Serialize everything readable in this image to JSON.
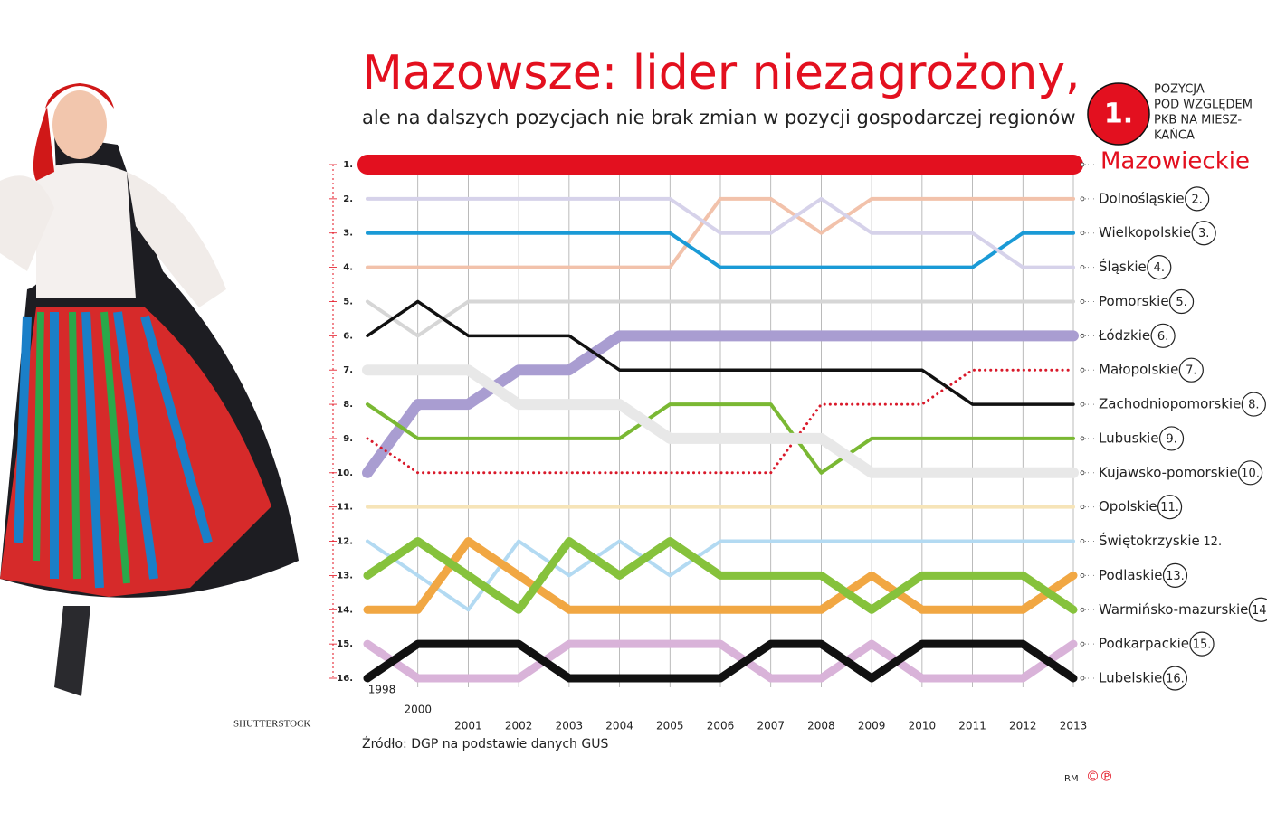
{
  "chart_data": {
    "type": "bump",
    "title": "Mazowsze: lider niezagrożony,",
    "subtitle": "ale na dalszych pozycjach nie brak zmian w pozycji gospodarczej regionów",
    "key_number": "1.",
    "key_text": [
      "POZYCJA",
      "POD WZGLĘDEM",
      "PKB NA MIESZ-",
      "KAŃCA"
    ],
    "photo_credit": "SHUTTERSTOCK",
    "source": "Źródło: DGP na podstawie danych GUS",
    "author": "RM",
    "copyright": "©℗",
    "categories": [
      "1998",
      "2000",
      "2001",
      "2002",
      "2003",
      "2004",
      "2005",
      "2006",
      "2007",
      "2008",
      "2009",
      "2010",
      "2011",
      "2012",
      "2013"
    ],
    "ylim": [
      1,
      16
    ],
    "yticks": [
      {
        "value": 1,
        "label": "1."
      },
      {
        "value": 2,
        "label": "2."
      },
      {
        "value": 3,
        "label": "3."
      },
      {
        "value": 4,
        "label": "4."
      },
      {
        "value": 5,
        "label": "5."
      },
      {
        "value": 6,
        "label": "6."
      },
      {
        "value": 7,
        "label": "7."
      },
      {
        "value": 8,
        "label": "8."
      },
      {
        "value": 9,
        "label": "9."
      },
      {
        "value": 10,
        "label": "10."
      },
      {
        "value": 11,
        "label": "11."
      },
      {
        "value": 12,
        "label": "12."
      },
      {
        "value": 13,
        "label": "13."
      },
      {
        "value": 14,
        "label": "14."
      },
      {
        "value": 15,
        "label": "15."
      },
      {
        "value": 16,
        "label": "16."
      }
    ],
    "grid": true,
    "series": [
      {
        "name": "Mazowieckie",
        "color": "#e3101f",
        "width": 22,
        "values": [
          1,
          1,
          1,
          1,
          1,
          1,
          1,
          1,
          1,
          1,
          1,
          1,
          1,
          1,
          1
        ]
      },
      {
        "name": "Dolnośląskie",
        "rank_label": "2.",
        "color": "#f2c2ab",
        "width": 4,
        "values": [
          4,
          4,
          4,
          4,
          4,
          4,
          4,
          2,
          2,
          3,
          2,
          2,
          2,
          2,
          2
        ]
      },
      {
        "name": "Wielkopolskie",
        "rank_label": "3.",
        "color": "#1a9ad6",
        "width": 4,
        "values": [
          3,
          3,
          3,
          3,
          3,
          3,
          3,
          4,
          4,
          4,
          4,
          4,
          4,
          3,
          3
        ]
      },
      {
        "name": "Śląskie",
        "rank_label": "4.",
        "color": "#d6d2ea",
        "width": 4,
        "values": [
          2,
          2,
          2,
          2,
          2,
          2,
          2,
          3,
          3,
          2,
          3,
          3,
          3,
          4,
          4
        ]
      },
      {
        "name": "Pomorskie",
        "rank_label": "5.",
        "color": "#d6d6d6",
        "width": 4,
        "values": [
          5,
          6,
          5,
          5,
          5,
          5,
          5,
          5,
          5,
          5,
          5,
          5,
          5,
          5,
          5
        ]
      },
      {
        "name": "Łódzkie",
        "rank_label": "6.",
        "color": "#a99dd1",
        "width": 12,
        "values": [
          10,
          8,
          8,
          7,
          7,
          6,
          6,
          6,
          6,
          6,
          6,
          6,
          6,
          6,
          6
        ]
      },
      {
        "name": "Małopolskie",
        "rank_label": "7.",
        "color": "#d9192a",
        "width": 3,
        "dash": true,
        "values": [
          9,
          10,
          10,
          10,
          10,
          10,
          10,
          10,
          10,
          8,
          8,
          8,
          7,
          7,
          7
        ]
      },
      {
        "name": "Zachodniopomorskie",
        "rank_label": "8.",
        "color": "#111111",
        "width": 3.5,
        "values": [
          6,
          5,
          6,
          6,
          6,
          7,
          7,
          7,
          7,
          7,
          7,
          7,
          8,
          8,
          8
        ]
      },
      {
        "name": "Lubuskie",
        "rank_label": "9.",
        "color": "#7ab833",
        "width": 4,
        "values": [
          8,
          9,
          9,
          9,
          9,
          9,
          8,
          8,
          8,
          10,
          9,
          9,
          9,
          9,
          9
        ]
      },
      {
        "name": "Kujawsko-pomorskie",
        "rank_label": "10.",
        "color": "#e8e8e8",
        "width": 12,
        "values": [
          7,
          7,
          7,
          8,
          8,
          8,
          9,
          9,
          9,
          9,
          10,
          10,
          10,
          10,
          10
        ]
      },
      {
        "name": "Opolskie",
        "rank_label": "11.",
        "color": "#f6e4b8",
        "width": 4,
        "values": [
          11,
          11,
          11,
          11,
          11,
          11,
          11,
          11,
          11,
          11,
          11,
          11,
          11,
          11,
          11
        ]
      },
      {
        "name": "Świętokrzyskie",
        "rank_label": "12.",
        "color": "#b3daf2",
        "width": 4,
        "values": [
          12,
          13,
          14,
          12,
          13,
          12,
          13,
          12,
          12,
          12,
          12,
          12,
          12,
          12,
          12
        ]
      },
      {
        "name": "Podlaskie",
        "rank_label": "13.",
        "color": "#f1a743",
        "width": 9,
        "values": [
          14,
          14,
          12,
          13,
          14,
          14,
          14,
          14,
          14,
          14,
          13,
          14,
          14,
          14,
          13
        ]
      },
      {
        "name": "Warmińsko-mazurskie",
        "rank_label": "14.",
        "color": "#86c23c",
        "width": 9,
        "values": [
          13,
          12,
          13,
          14,
          12,
          13,
          12,
          13,
          13,
          13,
          14,
          13,
          13,
          13,
          14
        ]
      },
      {
        "name": "Podkarpackie",
        "rank_label": "15.",
        "color": "#d9b3d9",
        "width": 9,
        "values": [
          15,
          16,
          16,
          16,
          15,
          15,
          15,
          15,
          16,
          16,
          15,
          16,
          16,
          16,
          15
        ]
      },
      {
        "name": "Lubelskie",
        "rank_label": "16.",
        "color": "#111111",
        "width": 9,
        "values": [
          16,
          15,
          15,
          15,
          16,
          16,
          16,
          16,
          15,
          15,
          16,
          15,
          15,
          15,
          16
        ]
      }
    ]
  }
}
